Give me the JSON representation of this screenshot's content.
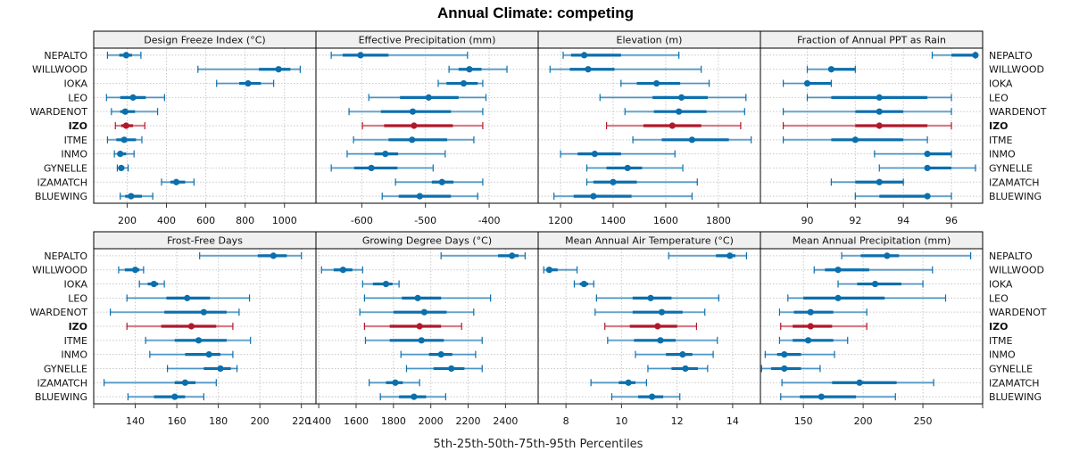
{
  "chart_data": {
    "type": "dotplot-percentile",
    "title": "Annual Climate: competing",
    "xlabel": "5th-25th-50th-75th-95th Percentiles",
    "highlight_site": "IZO",
    "colors": {
      "default": "#0b6fad",
      "default_light": "#7fb3d6",
      "highlight": "#b2182b",
      "highlight_light": "#e0868f",
      "grid": "#c8c8c8",
      "strip_bg": "#f0f0f0"
    },
    "sites": [
      "NEPALTO",
      "WILLWOOD",
      "IOKA",
      "LEO",
      "WARDENOT",
      "IZO",
      "ITME",
      "INMO",
      "GYNELLE",
      "IZAMATCH",
      "BLUEWING"
    ],
    "panels": [
      {
        "name": "Design Freeze Index (°C)",
        "xlim": [
          30,
          1160
        ],
        "ticks": [
          200,
          400,
          600,
          800,
          1000
        ],
        "values": [
          [
            100,
            160,
            195,
            225,
            270
          ],
          [
            560,
            870,
            970,
            1030,
            1080
          ],
          [
            655,
            770,
            815,
            880,
            945
          ],
          [
            95,
            165,
            230,
            295,
            390
          ],
          [
            120,
            165,
            190,
            240,
            355
          ],
          [
            140,
            170,
            195,
            230,
            290
          ],
          [
            100,
            145,
            185,
            245,
            275
          ],
          [
            135,
            150,
            165,
            195,
            235
          ],
          [
            150,
            160,
            170,
            185,
            205
          ],
          [
            375,
            420,
            450,
            495,
            540
          ],
          [
            165,
            190,
            220,
            275,
            330
          ]
        ]
      },
      {
        "name": "Effective Precipitation (mm)",
        "xlim": [
          -672,
          -323
        ],
        "ticks": [
          -600,
          -500,
          -400
        ],
        "values": [
          [
            -648,
            -630,
            -602,
            -558,
            -434
          ],
          [
            -463,
            -448,
            -431,
            -412,
            -372
          ],
          [
            -480,
            -467,
            -440,
            -418,
            -410
          ],
          [
            -589,
            -540,
            -495,
            -448,
            -405
          ],
          [
            -620,
            -570,
            -520,
            -460,
            -410
          ],
          [
            -599,
            -565,
            -518,
            -457,
            -410
          ],
          [
            -613,
            -558,
            -521,
            -466,
            -424
          ],
          [
            -623,
            -580,
            -563,
            -543,
            -469
          ],
          [
            -648,
            -612,
            -585,
            -544,
            -488
          ],
          [
            -547,
            -490,
            -474,
            -456,
            -410
          ],
          [
            -568,
            -542,
            -509,
            -460,
            -418
          ]
        ]
      },
      {
        "name": "Elevation (m)",
        "xlim": [
          1115,
          1960
        ],
        "ticks": [
          1200,
          1400,
          1600,
          1800
        ],
        "values": [
          [
            1210,
            1240,
            1290,
            1430,
            1650
          ],
          [
            1160,
            1235,
            1305,
            1405,
            1735
          ],
          [
            1430,
            1490,
            1565,
            1655,
            1765
          ],
          [
            1350,
            1550,
            1660,
            1760,
            1905
          ],
          [
            1445,
            1555,
            1650,
            1755,
            1900
          ],
          [
            1375,
            1515,
            1625,
            1735,
            1885
          ],
          [
            1475,
            1585,
            1700,
            1840,
            1925
          ],
          [
            1200,
            1265,
            1330,
            1430,
            1635
          ],
          [
            1300,
            1375,
            1455,
            1510,
            1665
          ],
          [
            1300,
            1325,
            1400,
            1490,
            1720
          ],
          [
            1175,
            1250,
            1325,
            1470,
            1700
          ]
        ]
      },
      {
        "name": "Fraction of Annual PPT as Rain",
        "xlim": [
          88.05,
          97.3
        ],
        "ticks": [
          90,
          92,
          94,
          96
        ],
        "values": [
          [
            95.2,
            96,
            97,
            97,
            97
          ],
          [
            90,
            91,
            91,
            92,
            92
          ],
          [
            89,
            90,
            90,
            91,
            91
          ],
          [
            90,
            91,
            93,
            95,
            96
          ],
          [
            89,
            92,
            93,
            94,
            96
          ],
          [
            89,
            92,
            93,
            95,
            96
          ],
          [
            89,
            91,
            92,
            94,
            95
          ],
          [
            92.8,
            95,
            95,
            96,
            96
          ],
          [
            93,
            95,
            95,
            96,
            97
          ],
          [
            91,
            92,
            93,
            94,
            94
          ],
          [
            92,
            93,
            95,
            95,
            96
          ]
        ]
      },
      {
        "name": "Frost-Free Days",
        "xlim": [
          120,
          227
        ],
        "ticks": [
          120,
          140,
          160,
          180,
          200,
          220
        ],
        "tick_labels": [
          "",
          "140",
          "160",
          "180",
          "200",
          "220"
        ],
        "values": [
          [
            171,
            199,
            206.5,
            213,
            220
          ],
          [
            132,
            135,
            140,
            142,
            144
          ],
          [
            142,
            146,
            149,
            151,
            154
          ],
          [
            136,
            155,
            165,
            176,
            195
          ],
          [
            128,
            154,
            173,
            184,
            190
          ],
          [
            136,
            152.5,
            167,
            179,
            187
          ],
          [
            145,
            159,
            170.5,
            184,
            195.5
          ],
          [
            147,
            164,
            175.5,
            181,
            187
          ],
          [
            155.5,
            173,
            181,
            186,
            189
          ],
          [
            125,
            159,
            164,
            169,
            179
          ],
          [
            136.5,
            149,
            159,
            164,
            173
          ]
        ]
      },
      {
        "name": "Growing Degree Days (°C)",
        "xlim": [
          1385,
          2575
        ],
        "ticks": [
          1400,
          1600,
          1800,
          2000,
          2200,
          2400
        ],
        "values": [
          [
            2055,
            2360,
            2435,
            2470,
            2505
          ],
          [
            1415,
            1480,
            1530,
            1580,
            1635
          ],
          [
            1635,
            1690,
            1760,
            1795,
            1830
          ],
          [
            1645,
            1845,
            1930,
            2055,
            2320
          ],
          [
            1620,
            1800,
            1965,
            2085,
            2230
          ],
          [
            1645,
            1780,
            1940,
            2055,
            2165
          ],
          [
            1650,
            1780,
            1950,
            2070,
            2275
          ],
          [
            1840,
            1990,
            2055,
            2115,
            2240
          ],
          [
            1870,
            2015,
            2110,
            2180,
            2275
          ],
          [
            1670,
            1760,
            1810,
            1850,
            1940
          ],
          [
            1730,
            1830,
            1910,
            1975,
            2080
          ]
        ]
      },
      {
        "name": "Mean Annual Air Temperature (°C)",
        "xlim": [
          7.0,
          15.0
        ],
        "ticks": [
          8,
          10,
          12,
          14
        ],
        "values": [
          [
            11.7,
            13.4,
            13.9,
            14.1,
            14.5
          ],
          [
            7.2,
            7.4,
            7.4,
            7.7,
            8.4
          ],
          [
            8.3,
            8.5,
            8.65,
            8.8,
            9.0
          ],
          [
            9.1,
            10.4,
            11.05,
            11.8,
            13.5
          ],
          [
            9.05,
            10.4,
            11.45,
            12.2,
            13.0
          ],
          [
            9.4,
            10.3,
            11.3,
            12.0,
            12.7
          ],
          [
            9.5,
            10.45,
            11.4,
            11.95,
            13.45
          ],
          [
            10.5,
            11.6,
            12.2,
            12.55,
            13.3
          ],
          [
            10.95,
            11.8,
            12.3,
            12.75,
            13.1
          ],
          [
            8.9,
            9.9,
            10.25,
            10.5,
            10.9
          ],
          [
            9.65,
            10.6,
            11.1,
            11.5,
            12.1
          ]
        ]
      },
      {
        "name": "Mean Annual Precipitation (mm)",
        "xlim": [
          114,
          300
        ],
        "ticks": [
          150,
          200,
          250,
          300
        ],
        "tick_labels": [
          "150",
          "200",
          "250",
          ""
        ],
        "values": [
          [
            182,
            198,
            220,
            230,
            290
          ],
          [
            159,
            168,
            179,
            205,
            258
          ],
          [
            179,
            195,
            210,
            232,
            250
          ],
          [
            137,
            150,
            179,
            218,
            269
          ],
          [
            130,
            142,
            156,
            175,
            203
          ],
          [
            131,
            141,
            156,
            174,
            203
          ],
          [
            130,
            141,
            154,
            175,
            187
          ],
          [
            118,
            128,
            134,
            148,
            176
          ],
          [
            115,
            123,
            134,
            148,
            164
          ],
          [
            132,
            174,
            197,
            228,
            259
          ],
          [
            131,
            147,
            165,
            194,
            227
          ]
        ]
      }
    ]
  }
}
